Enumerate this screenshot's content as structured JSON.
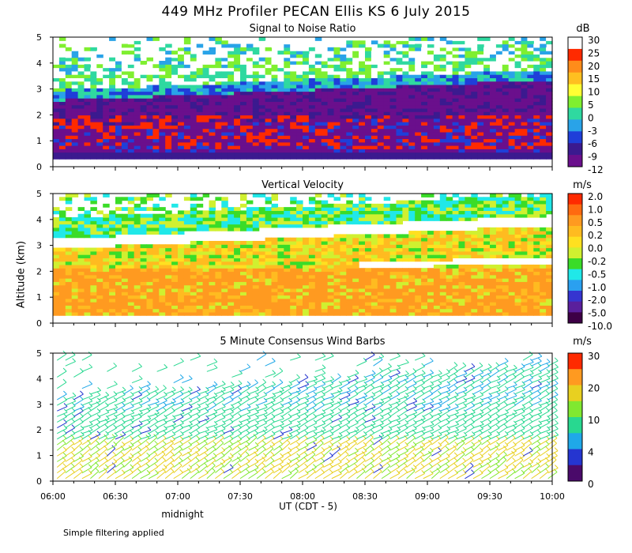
{
  "header": {
    "title": "449 MHz Profiler PECAN Ellis KS   6 July 2015"
  },
  "axes": {
    "ylabel": "Altitude (km)",
    "y_ticks": [
      "0",
      "1",
      "2",
      "3",
      "4",
      "5"
    ],
    "x_ticks": [
      "06:00",
      "06:30",
      "07:00",
      "07:30",
      "08:00",
      "08:30",
      "09:00",
      "09:30",
      "10:00"
    ],
    "xlabel": "UT  (CDT - 5)",
    "midnight_label": "midnight"
  },
  "footer": {
    "note": "Simple filtering applied"
  },
  "colors": {
    "snr": [
      "#6a0f8c",
      "#3b1a8f",
      "#1f3fd9",
      "#29a3e8",
      "#2fd9a0",
      "#7fef30",
      "#ffff33",
      "#ffc020",
      "#ff8c1a",
      "#ff2a00",
      "#ffffff"
    ],
    "vel": [
      "#3d0045",
      "#5a1f9c",
      "#3535d0",
      "#2aa0f0",
      "#20e8e8",
      "#3adc28",
      "#d0f030",
      "#ffe020",
      "#ffbb20",
      "#ff9a20",
      "#ff6a10",
      "#ff2a00"
    ],
    "wind": [
      "#4a0a6a",
      "#2535d0",
      "#1fa8e8",
      "#28d890",
      "#80e830",
      "#e8d020",
      "#ff9a20",
      "#ff2a00"
    ]
  },
  "chart_data": [
    {
      "type": "heatmap",
      "title": "Signal to Noise Ratio",
      "units": "dB",
      "colorbar_labels": [
        "30",
        "25",
        "20",
        "15",
        "10",
        "5",
        "0",
        "-3",
        "-6",
        "-9",
        "-12"
      ],
      "xlim": [
        6.0,
        10.0
      ],
      "ylim": [
        0,
        5
      ],
      "ylabel": "Altitude (km)",
      "xlabel": "UT (CDT - 5)"
    },
    {
      "type": "heatmap",
      "title": "Vertical Velocity",
      "units": "m/s",
      "colorbar_labels": [
        "2.0",
        "1.0",
        "0.5",
        "0.2",
        "0.0",
        "-0.2",
        "-0.5",
        "-1.0",
        "-2.0",
        "-5.0",
        "-10.0"
      ],
      "xlim": [
        6.0,
        10.0
      ],
      "ylim": [
        0,
        5
      ]
    },
    {
      "type": "scatter",
      "title": "5 Minute Consensus Wind Barbs",
      "units": "m/s",
      "colorbar_labels": [
        "30",
        "20",
        "10",
        "4",
        "0"
      ],
      "xlim": [
        6.0,
        10.0
      ],
      "ylim": [
        0,
        5
      ]
    }
  ]
}
